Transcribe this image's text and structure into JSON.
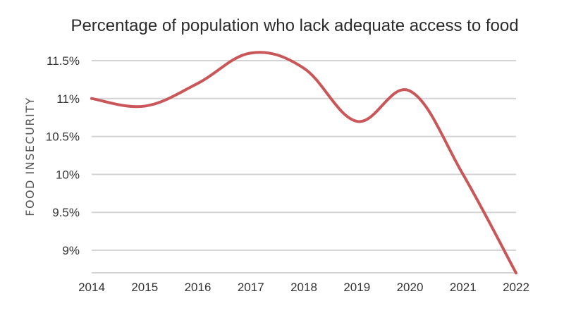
{
  "chart_data": {
    "type": "line",
    "title": "Percentage of population who lack adequate access to food",
    "xlabel": "",
    "ylabel": "FOOD INSECURITY",
    "categories": [
      "2014",
      "2015",
      "2016",
      "2017",
      "2018",
      "2019",
      "2020",
      "2021",
      "2022"
    ],
    "series": [
      {
        "name": "Food insecurity",
        "values": [
          11.0,
          10.9,
          11.2,
          11.6,
          11.4,
          10.7,
          11.1,
          10.0,
          8.7
        ],
        "color": "#c9575a"
      }
    ],
    "yticks": [
      9,
      9.5,
      10,
      10.5,
      11,
      11.5
    ],
    "ytick_labels": [
      "9%",
      "9.5%",
      "10%",
      "10.5%",
      "11%",
      "11.5%"
    ],
    "ylim": [
      8.7,
      11.75
    ],
    "grid": true,
    "legend": "none"
  }
}
